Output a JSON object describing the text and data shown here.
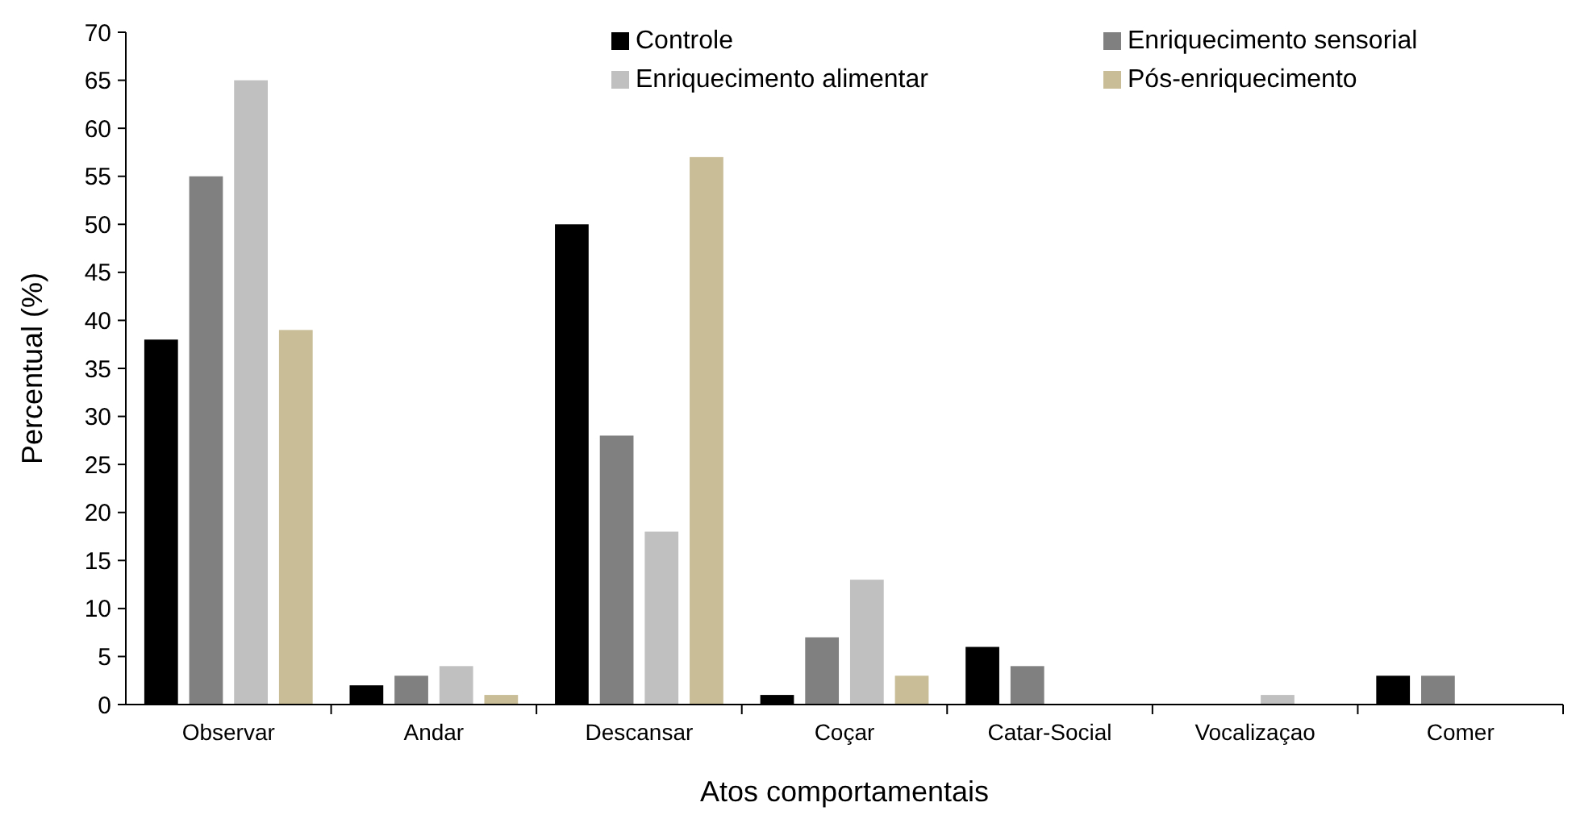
{
  "chart_data": {
    "type": "bar",
    "xlabel": "Atos comportamentais",
    "ylabel": "Percentual (%)",
    "categories": [
      "Observar",
      "Andar",
      "Descansar",
      "Coçar",
      "Catar-Social",
      "Vocalizaçao",
      "Comer"
    ],
    "series": [
      {
        "name": "Controle",
        "color": "#000000",
        "values": [
          38,
          2,
          50,
          1,
          6,
          0,
          3
        ]
      },
      {
        "name": "Enriquecimento sensorial",
        "color": "#808080",
        "values": [
          55,
          3,
          28,
          7,
          4,
          0,
          3
        ]
      },
      {
        "name": "Enriquecimento alimentar",
        "color": "#c0c0c0",
        "values": [
          65,
          4,
          18,
          13,
          0,
          1,
          0
        ]
      },
      {
        "name": "Pós-enriquecimento",
        "color": "#c8bd96",
        "values": [
          39,
          1,
          57,
          3,
          0,
          0,
          0
        ]
      }
    ],
    "ylim": [
      0,
      70
    ],
    "yticks": [
      0,
      5,
      10,
      15,
      20,
      25,
      30,
      35,
      40,
      45,
      50,
      55,
      60,
      65,
      70
    ],
    "grid": false,
    "legend": "top right"
  }
}
